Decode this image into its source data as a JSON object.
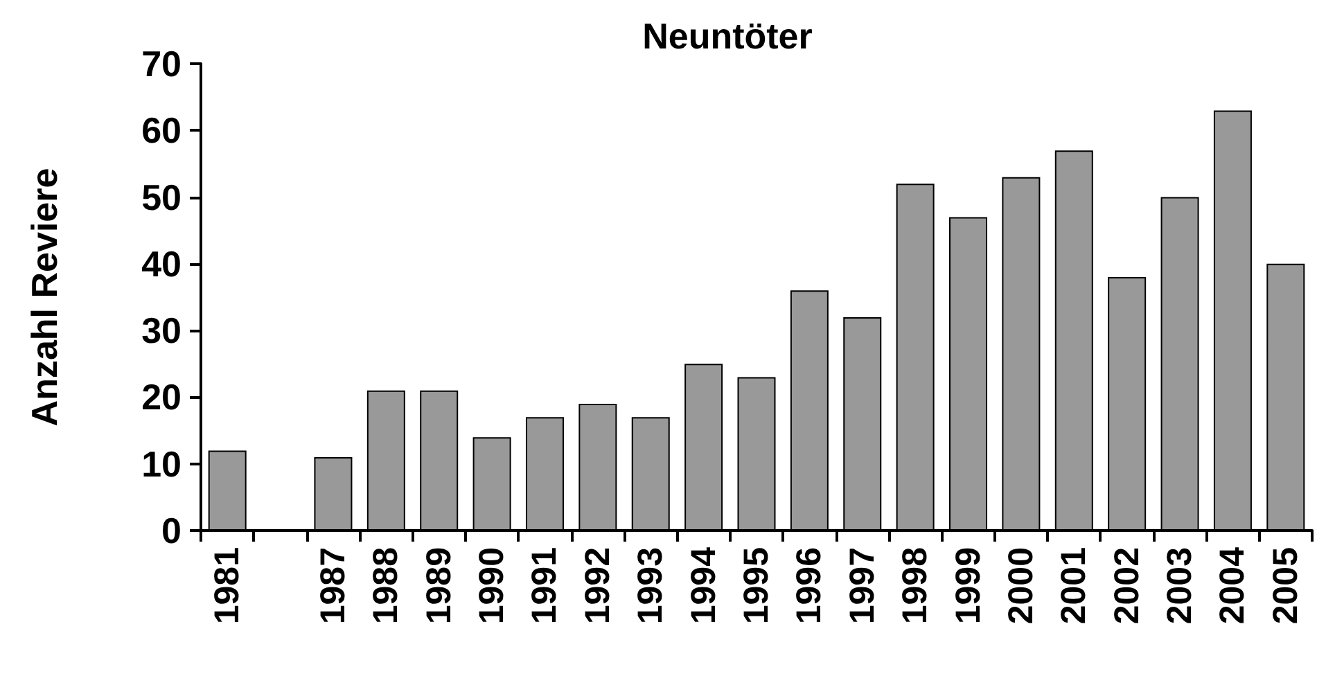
{
  "chart_data": {
    "type": "bar",
    "title": "Neuntöter",
    "ylabel": "Anzahl Reviere",
    "categories": [
      "1981",
      null,
      "1987",
      "1988",
      "1989",
      "1990",
      "1991",
      "1992",
      "1993",
      "1994",
      "1995",
      "1996",
      "1997",
      "1998",
      "1999",
      "2000",
      "2001",
      "2002",
      "2003",
      "2004",
      "2005"
    ],
    "values": [
      12,
      null,
      11,
      21,
      21,
      14,
      17,
      19,
      17,
      25,
      23,
      36,
      32,
      52,
      47,
      53,
      57,
      38,
      50,
      63,
      40
    ],
    "color": "#999999",
    "ylim": [
      0,
      70
    ],
    "yticks": [
      0,
      10,
      20,
      30,
      40,
      50,
      60,
      70
    ],
    "grid": false
  }
}
